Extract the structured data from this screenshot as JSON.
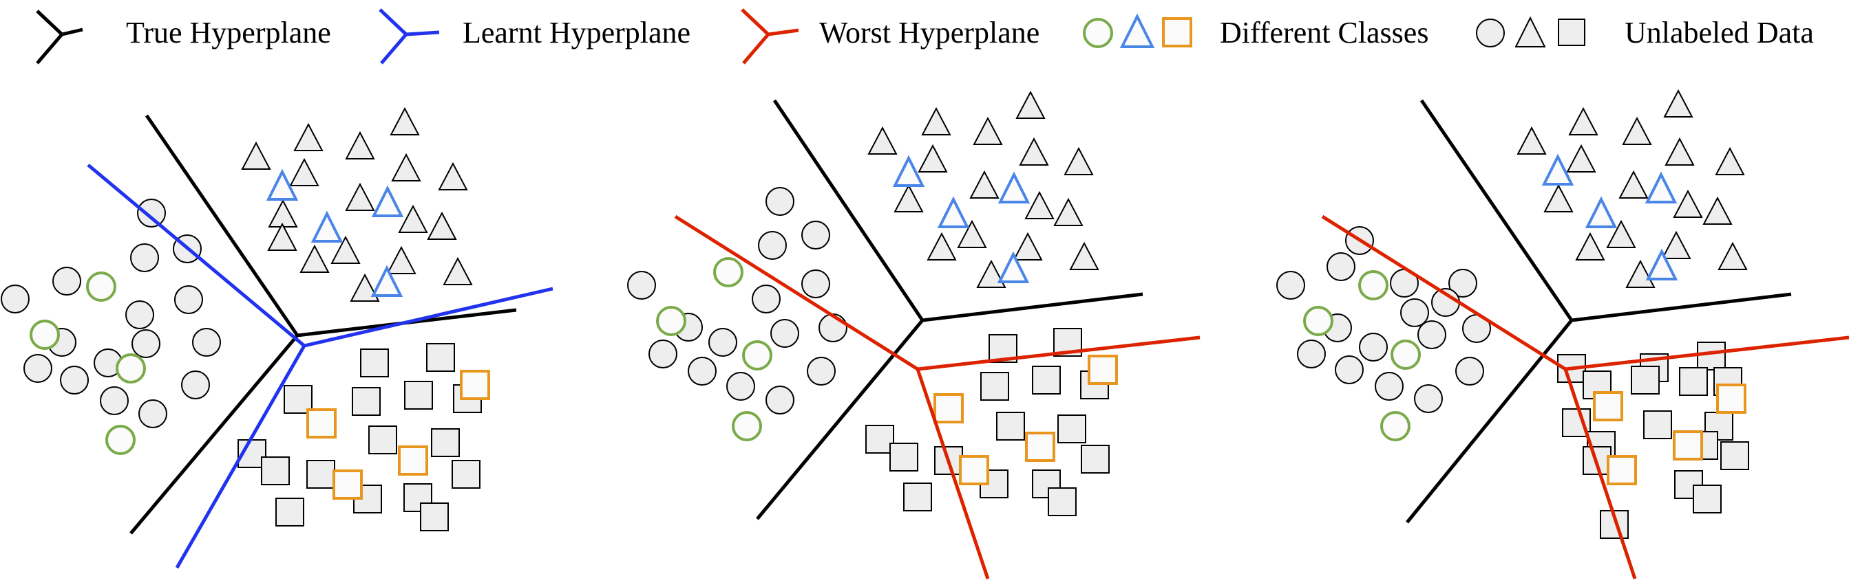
{
  "legend": {
    "true_hyperplane": "True Hyperplane",
    "learnt_hyperplane": "Learnt Hyperplane",
    "worst_hyperplane": "Worst Hyperplane",
    "different_classes": "Different Classes",
    "unlabeled_data": "Unlabeled Data"
  },
  "colors": {
    "true": "#000000",
    "learnt": "#2233ee",
    "worst": "#dd2200",
    "class_circle": "#7aaa4a",
    "class_triangle": "#4a86e8",
    "class_square": "#e8961e",
    "unlabeled_fill": "#eeeeee",
    "labeled_fill": "#fbfbfb"
  },
  "panels": [
    {
      "name": "panel-1-learnt",
      "comparison": "learnt"
    },
    {
      "name": "panel-2-worst",
      "comparison": "worst"
    },
    {
      "name": "panel-3-worst",
      "comparison": "worst"
    }
  ]
}
